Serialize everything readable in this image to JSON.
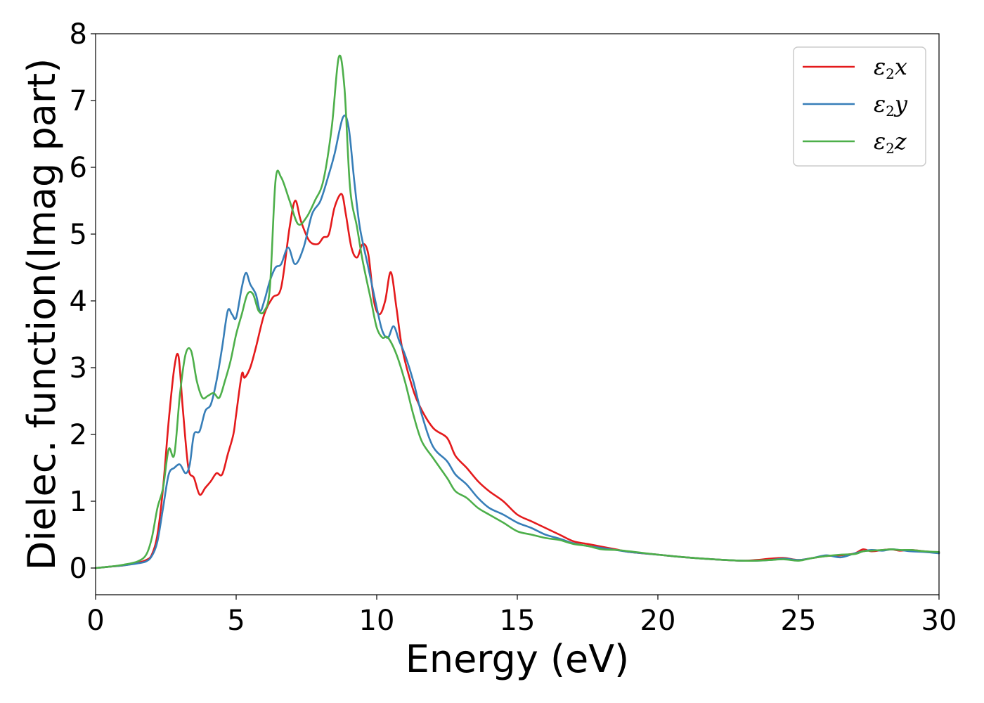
{
  "chart_data": {
    "type": "line",
    "title": "",
    "xlabel": "Energy (eV)",
    "ylabel": "Dielec. function(Imag part)",
    "xlim": [
      0,
      30
    ],
    "ylim": [
      -0.4,
      8
    ],
    "xticks": [
      0,
      5,
      10,
      15,
      20,
      25,
      30
    ],
    "yticks": [
      0,
      1,
      2,
      3,
      4,
      5,
      6,
      7,
      8
    ],
    "xtick_labels": [
      "0",
      "5",
      "10",
      "15",
      "20",
      "25",
      "30"
    ],
    "ytick_labels": [
      "0",
      "1",
      "2",
      "3",
      "4",
      "5",
      "6",
      "7",
      "8"
    ],
    "grid": false,
    "legend_position": "top-right",
    "series": [
      {
        "name": "ε2x",
        "legend_symbol": "ε",
        "legend_subscript": "2",
        "legend_suffix": "x",
        "color": "#e41a1c",
        "x": [
          0,
          0.5,
          1.0,
          1.5,
          1.8,
          2.0,
          2.2,
          2.4,
          2.6,
          2.8,
          2.95,
          3.1,
          3.3,
          3.5,
          3.7,
          3.9,
          4.1,
          4.3,
          4.5,
          4.7,
          4.9,
          5.0,
          5.2,
          5.3,
          5.5,
          5.7,
          6.0,
          6.3,
          6.6,
          6.9,
          7.1,
          7.3,
          7.6,
          7.9,
          8.1,
          8.3,
          8.5,
          8.75,
          8.9,
          9.1,
          9.3,
          9.5,
          9.7,
          9.9,
          10.1,
          10.3,
          10.5,
          10.7,
          10.9,
          11.2,
          11.5,
          12.0,
          12.5,
          12.8,
          13.2,
          13.6,
          14.0,
          14.5,
          15.0,
          15.5,
          16.0,
          16.5,
          17.0,
          17.5,
          18.0,
          18.5,
          19.0,
          20.0,
          21.0,
          22.0,
          23.0,
          23.5,
          24.0,
          24.5,
          25.0,
          25.5,
          26.0,
          26.5,
          27.0,
          27.3,
          27.6,
          28.0,
          28.3,
          28.6,
          29.0,
          29.5,
          30.0
        ],
        "y": [
          0.0,
          0.02,
          0.04,
          0.08,
          0.12,
          0.2,
          0.5,
          1.2,
          2.2,
          3.0,
          3.17,
          2.4,
          1.5,
          1.35,
          1.1,
          1.2,
          1.3,
          1.42,
          1.4,
          1.7,
          2.0,
          2.3,
          2.9,
          2.85,
          3.0,
          3.3,
          3.8,
          4.05,
          4.2,
          5.1,
          5.5,
          5.2,
          4.9,
          4.85,
          4.95,
          5.0,
          5.4,
          5.6,
          5.3,
          4.8,
          4.65,
          4.85,
          4.7,
          4.0,
          3.8,
          4.0,
          4.43,
          3.9,
          3.3,
          2.8,
          2.45,
          2.1,
          1.95,
          1.68,
          1.5,
          1.3,
          1.15,
          1.0,
          0.8,
          0.7,
          0.6,
          0.5,
          0.4,
          0.36,
          0.32,
          0.28,
          0.24,
          0.2,
          0.16,
          0.13,
          0.11,
          0.12,
          0.14,
          0.15,
          0.12,
          0.15,
          0.18,
          0.19,
          0.22,
          0.28,
          0.25,
          0.27,
          0.28,
          0.26,
          0.27,
          0.25,
          0.23
        ]
      },
      {
        "name": "ε2y",
        "legend_symbol": "ε",
        "legend_subscript": "2",
        "legend_suffix": "y",
        "color": "#377eb8",
        "x": [
          0,
          0.5,
          1.0,
          1.5,
          1.8,
          2.0,
          2.2,
          2.4,
          2.6,
          2.8,
          3.0,
          3.2,
          3.35,
          3.5,
          3.7,
          3.9,
          4.1,
          4.3,
          4.5,
          4.7,
          4.85,
          5.0,
          5.2,
          5.35,
          5.5,
          5.7,
          5.85,
          6.0,
          6.2,
          6.4,
          6.6,
          6.85,
          7.1,
          7.4,
          7.7,
          8.0,
          8.3,
          8.5,
          8.8,
          9.0,
          9.2,
          9.4,
          9.7,
          10.0,
          10.2,
          10.4,
          10.6,
          10.8,
          11.0,
          11.3,
          11.6,
          12.0,
          12.5,
          12.8,
          13.2,
          13.6,
          14.0,
          14.5,
          15.0,
          15.5,
          16.0,
          16.5,
          17.0,
          17.5,
          18.0,
          18.5,
          19.0,
          20.0,
          21.0,
          22.0,
          23.0,
          23.5,
          24.0,
          24.5,
          25.0,
          25.5,
          26.0,
          26.5,
          27.0,
          27.3,
          27.6,
          28.0,
          28.3,
          28.6,
          29.0,
          29.5,
          30.0
        ],
        "y": [
          0.0,
          0.02,
          0.04,
          0.07,
          0.1,
          0.18,
          0.4,
          0.9,
          1.4,
          1.5,
          1.55,
          1.42,
          1.55,
          2.0,
          2.05,
          2.35,
          2.45,
          2.8,
          3.3,
          3.85,
          3.8,
          3.75,
          4.2,
          4.42,
          4.25,
          4.1,
          3.85,
          4.0,
          4.3,
          4.5,
          4.55,
          4.8,
          4.55,
          4.8,
          5.3,
          5.5,
          5.9,
          6.2,
          6.75,
          6.6,
          5.8,
          5.1,
          4.5,
          3.9,
          3.55,
          3.45,
          3.62,
          3.4,
          3.2,
          2.8,
          2.3,
          1.82,
          1.6,
          1.4,
          1.25,
          1.05,
          0.9,
          0.8,
          0.68,
          0.6,
          0.5,
          0.44,
          0.37,
          0.33,
          0.3,
          0.27,
          0.24,
          0.2,
          0.16,
          0.13,
          0.11,
          0.11,
          0.12,
          0.14,
          0.12,
          0.15,
          0.19,
          0.16,
          0.22,
          0.25,
          0.27,
          0.26,
          0.28,
          0.27,
          0.25,
          0.24,
          0.22
        ]
      },
      {
        "name": "ε2z",
        "legend_symbol": "ε",
        "legend_subscript": "2",
        "legend_suffix": "z",
        "color": "#4daf4a",
        "x": [
          0,
          0.5,
          1.0,
          1.5,
          1.8,
          2.0,
          2.2,
          2.4,
          2.6,
          2.8,
          3.0,
          3.2,
          3.4,
          3.6,
          3.8,
          4.0,
          4.2,
          4.4,
          4.6,
          4.8,
          5.0,
          5.2,
          5.4,
          5.6,
          5.8,
          6.0,
          6.2,
          6.4,
          6.6,
          6.9,
          7.2,
          7.5,
          7.8,
          8.1,
          8.4,
          8.65,
          8.85,
          9.05,
          9.3,
          9.5,
          9.8,
          10.0,
          10.2,
          10.4,
          10.7,
          11.0,
          11.3,
          11.6,
          12.0,
          12.5,
          12.8,
          13.2,
          13.6,
          14.0,
          14.5,
          15.0,
          15.5,
          16.0,
          16.5,
          17.0,
          17.5,
          18.0,
          18.5,
          19.0,
          20.0,
          21.0,
          22.0,
          23.0,
          23.5,
          24.0,
          24.5,
          25.0,
          25.5,
          26.0,
          26.5,
          27.0,
          27.3,
          27.6,
          28.0,
          28.3,
          28.6,
          29.0,
          29.5,
          30.0
        ],
        "y": [
          0.0,
          0.02,
          0.05,
          0.1,
          0.2,
          0.45,
          0.9,
          1.2,
          1.78,
          1.7,
          2.6,
          3.2,
          3.25,
          2.8,
          2.55,
          2.58,
          2.62,
          2.55,
          2.8,
          3.1,
          3.5,
          3.8,
          4.1,
          4.1,
          3.85,
          3.85,
          4.2,
          5.8,
          5.85,
          5.5,
          5.15,
          5.25,
          5.5,
          5.8,
          6.6,
          7.65,
          7.2,
          5.7,
          5.1,
          4.6,
          4.0,
          3.6,
          3.45,
          3.45,
          3.2,
          2.8,
          2.3,
          1.9,
          1.65,
          1.35,
          1.15,
          1.05,
          0.9,
          0.8,
          0.68,
          0.55,
          0.5,
          0.45,
          0.42,
          0.36,
          0.33,
          0.28,
          0.27,
          0.25,
          0.2,
          0.16,
          0.13,
          0.11,
          0.11,
          0.12,
          0.13,
          0.11,
          0.15,
          0.18,
          0.2,
          0.21,
          0.25,
          0.26,
          0.27,
          0.28,
          0.27,
          0.27,
          0.25,
          0.24
        ]
      }
    ]
  }
}
